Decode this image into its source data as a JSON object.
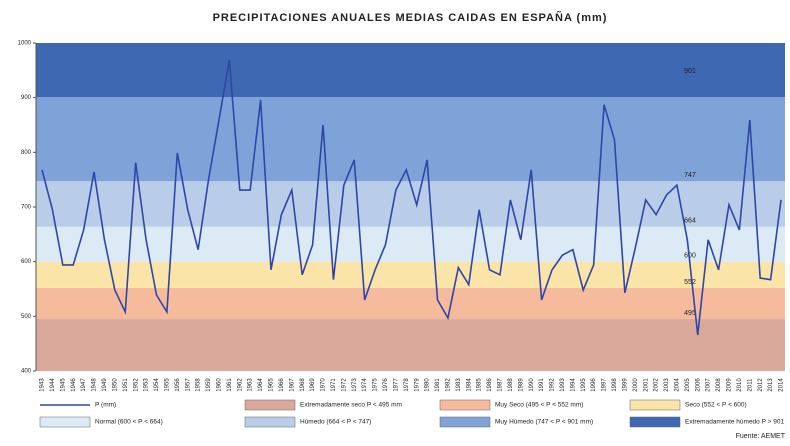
{
  "chart_data": {
    "type": "line",
    "title": "PRECIPITACIONES ANUALES MEDIAS CAIDAS EN ESPAÑA (mm)",
    "categories": [
      "1943",
      "1944",
      "1945",
      "1946",
      "1947",
      "1948",
      "1949",
      "1950",
      "1951",
      "1952",
      "1953",
      "1954",
      "1955",
      "1956",
      "1957",
      "1958",
      "1959",
      "1960",
      "1961",
      "1962",
      "1963",
      "1964",
      "1965",
      "1966",
      "1967",
      "1968",
      "1969",
      "1970",
      "1971",
      "1972",
      "1973",
      "1974",
      "1975",
      "1976",
      "1977",
      "1978",
      "1979",
      "1980",
      "1981",
      "1982",
      "1983",
      "1984",
      "1985",
      "1986",
      "1987",
      "1988",
      "1989",
      "1990",
      "1991",
      "1992",
      "1993",
      "1994",
      "1995",
      "1996",
      "1997",
      "1998",
      "1999",
      "2000",
      "2001",
      "2002",
      "2003",
      "2004",
      "2005",
      "2006",
      "2007",
      "2008",
      "2009",
      "2010",
      "2011",
      "2012",
      "2013",
      "2014"
    ],
    "series": [
      {
        "name": "P (mm)",
        "color": "#2f46a8",
        "values": [
          768,
          695,
          594,
          594,
          658,
          764,
          640,
          548,
          508,
          781,
          640,
          539,
          508,
          799,
          695,
          622,
          750,
          859,
          969,
          731,
          731,
          896,
          585,
          686,
          731,
          576,
          631,
          850,
          567,
          740,
          786,
          530,
          585,
          631,
          731,
          768,
          704,
          786,
          530,
          497,
          589,
          558,
          695,
          585,
          576,
          713,
          640,
          768,
          530,
          585,
          612,
          622,
          548,
          594,
          887,
          823,
          543,
          625,
          713,
          686,
          722,
          740,
          640,
          466,
          640,
          585,
          704,
          658,
          859,
          570,
          567,
          713
        ]
      }
    ],
    "thresholds": [
      495,
      552,
      600,
      664,
      747,
      901
    ],
    "bands": [
      {
        "name": "Extremadamente seco P < 495 mm",
        "color": "#dba99c"
      },
      {
        "name": "Muy Seco (495 < P < 552 mm)",
        "color": "#f6bb9c"
      },
      {
        "name": "Seco (552 < P < 600)",
        "color": "#fbe4a8"
      },
      {
        "name": "Normal (600 < P < 664)",
        "color": "#dbeaf4"
      },
      {
        "name": "Húmedo (664 < P < 747)",
        "color": "#b9cde9"
      },
      {
        "name": "Muy Húmedo (747 < P < 901 mm)",
        "color": "#7fa3d9"
      },
      {
        "name": "Extremadamente húmedo P > 901",
        "color": "#3e68b1"
      }
    ],
    "ylim": [
      400,
      1000
    ],
    "yticks": [
      400,
      500,
      600,
      700,
      800,
      900,
      1000
    ],
    "source": "Fuente: AEMET"
  }
}
